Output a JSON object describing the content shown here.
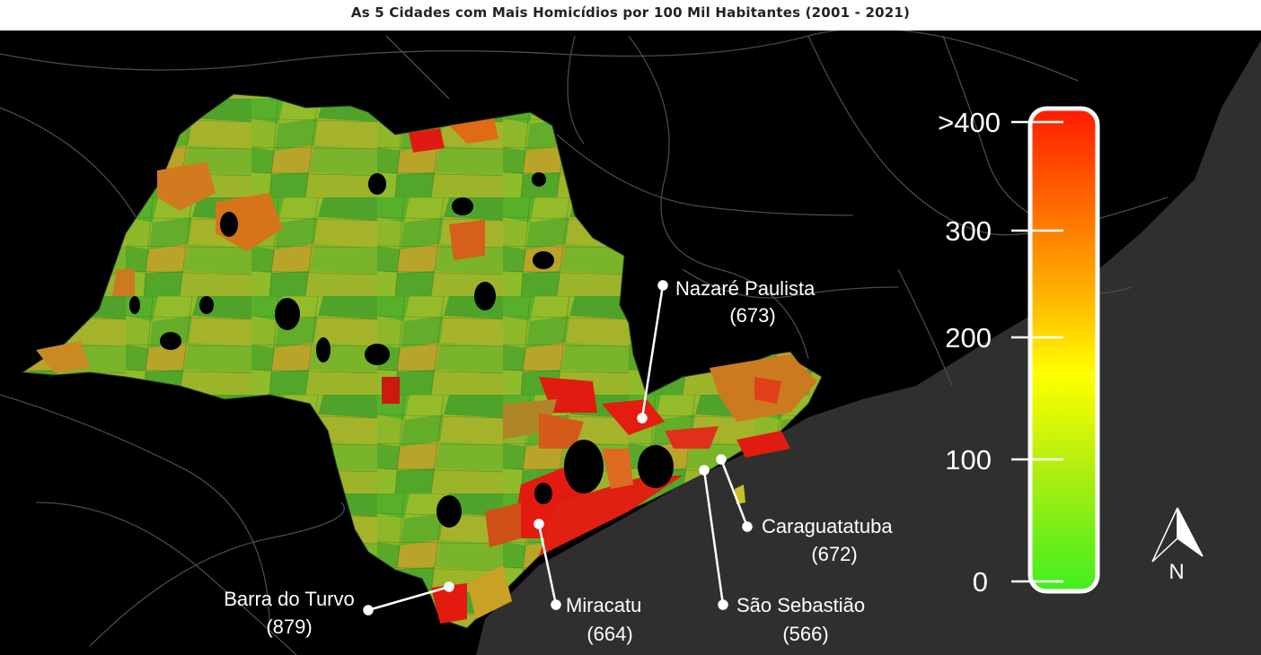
{
  "title": "As 5 Cidades com Mais Homicídios por 100 Mil Habitantes (2001 - 2021)",
  "cities": [
    {
      "name": "Nazaré Paulista",
      "value": "(673)"
    },
    {
      "name": "Caraguatatuba",
      "value": "(672)"
    },
    {
      "name": "São Sebastião",
      "value": "(566)"
    },
    {
      "name": "Miracatu",
      "value": "(664)"
    },
    {
      "name": "Barra do Turvo",
      "value": "(879)"
    }
  ],
  "legend": {
    "ticks": [
      ">400",
      "300",
      "200",
      "100",
      "0"
    ],
    "colors": [
      "#ff1a00",
      "#ff6a00",
      "#ffb000",
      "#ffff00",
      "#b0ee10",
      "#40ee20"
    ]
  },
  "north_arrow": {
    "label": "N",
    "icon": "north-arrow-icon"
  },
  "colors": {
    "background": "#000000",
    "ocean": "#2f2f2f",
    "roads": "#4a4a4a"
  }
}
